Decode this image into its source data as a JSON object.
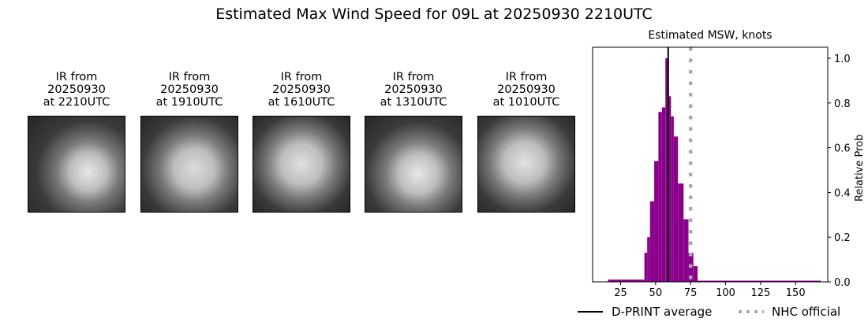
{
  "title": "Estimated Max Wind Speed for 09L at 20250930 2210UTC",
  "thumbnails": [
    {
      "line1": "IR from",
      "line2": "20250930",
      "line3": "at 2210UTC"
    },
    {
      "line1": "IR from",
      "line2": "20250930",
      "line3": "at 1910UTC"
    },
    {
      "line1": "IR from",
      "line2": "20250930",
      "line3": "at 1610UTC"
    },
    {
      "line1": "IR from",
      "line2": "20250930",
      "line3": "at 1310UTC"
    },
    {
      "line1": "IR from",
      "line2": "20250930",
      "line3": "at 1010UTC"
    }
  ],
  "colors": {
    "bars": "#8b008b",
    "dprint_line": "#000000",
    "nhc_line": "#aaaaaa"
  },
  "chart_data": {
    "type": "bar",
    "title": "Estimated MSW, knots",
    "xlabel": "",
    "ylabel": "Relative Prob",
    "xlim": [
      5,
      173
    ],
    "ylim": [
      0,
      1.05
    ],
    "xticks": [
      25,
      50,
      75,
      100,
      125,
      150
    ],
    "yticks": [
      0.0,
      0.2,
      0.4,
      0.6,
      0.8,
      1.0
    ],
    "xtick_labels": [
      "25",
      "50",
      "75",
      "100",
      "125",
      "150"
    ],
    "ytick_labels": [
      "0.0",
      "0.2",
      "0.4",
      "0.6",
      "0.8",
      "1.0"
    ],
    "yaxis_position": "right",
    "grid": false,
    "bins": [
      {
        "x0": 16,
        "x1": 42,
        "value": 0.01
      },
      {
        "x0": 42,
        "x1": 44,
        "value": 0.13
      },
      {
        "x0": 44,
        "x1": 46,
        "value": 0.2
      },
      {
        "x0": 46,
        "x1": 49,
        "value": 0.36
      },
      {
        "x0": 49,
        "x1": 52,
        "value": 0.54
      },
      {
        "x0": 52,
        "x1": 54.5,
        "value": 0.76
      },
      {
        "x0": 54.5,
        "x1": 57,
        "value": 0.78
      },
      {
        "x0": 57,
        "x1": 59,
        "value": 1.0
      },
      {
        "x0": 59,
        "x1": 61,
        "value": 0.83
      },
      {
        "x0": 61,
        "x1": 63,
        "value": 0.74
      },
      {
        "x0": 63,
        "x1": 66,
        "value": 0.65
      },
      {
        "x0": 66,
        "x1": 70,
        "value": 0.44
      },
      {
        "x0": 70,
        "x1": 73.5,
        "value": 0.28
      },
      {
        "x0": 73.5,
        "x1": 77,
        "value": 0.13
      },
      {
        "x0": 77,
        "x1": 80,
        "value": 0.07
      },
      {
        "x0": 80,
        "x1": 168,
        "value": 0.005
      }
    ],
    "lines": [
      {
        "name": "D-PRINT average",
        "x": 59,
        "style": "solid",
        "color": "#000000"
      },
      {
        "name": "NHC official",
        "x": 75,
        "style": "dotted",
        "color": "#aaaaaa"
      }
    ],
    "legend": [
      "D-PRINT average",
      "NHC official"
    ],
    "legend_position": "bottom"
  }
}
